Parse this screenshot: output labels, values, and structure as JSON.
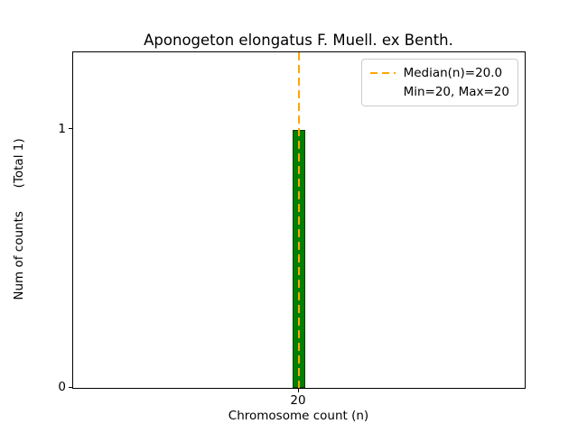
{
  "figure": {
    "title": "Aponogeton elongatus F. Muell. ex Benth.",
    "xlabel": "Chromosome count (n)",
    "ylabel": "Num of counts      (Total 1)"
  },
  "legend": {
    "position": "upper right",
    "entries": [
      {
        "label": "Median(n)=20.0",
        "handle": "dashed-line",
        "color": "#ffa500"
      },
      {
        "label": "Min=20, Max=20",
        "handle": "none"
      }
    ]
  },
  "chart_data": {
    "type": "bar",
    "title": "Aponogeton elongatus F. Muell. ex Benth.",
    "xlabel": "Chromosome count (n)",
    "ylabel": "Num of counts      (Total 1)",
    "categories": [
      20
    ],
    "values": [
      1
    ],
    "total_counts": 1,
    "bar_color": "#008000",
    "bar_edge_color": "#0b3d0b",
    "bar_width_units": 0.55,
    "median_line": {
      "x": 20,
      "value_label": "Median(n)=20.0",
      "color": "#ffa500",
      "style": "dashed"
    },
    "min": 20,
    "max": 20,
    "xlim": [
      10,
      30
    ],
    "ylim": [
      0,
      1.3
    ],
    "xticks": [
      20
    ],
    "yticks": [
      0,
      1
    ],
    "grid": false,
    "legend_position": "upper right"
  }
}
